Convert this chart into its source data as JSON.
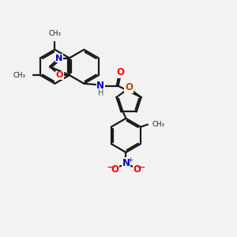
{
  "bg_color": "#f2f2f2",
  "bond_color": "#1a1a1a",
  "nitrogen_color": "#0000cc",
  "oxygen_color": "#ff0000",
  "furan_o_color": "#cc4400",
  "hydrogen_color": "#336666",
  "lw": 1.6,
  "figsize": [
    3.0,
    3.0
  ],
  "dpi": 100,
  "xlim": [
    0,
    10
  ],
  "ylim": [
    0,
    10
  ]
}
